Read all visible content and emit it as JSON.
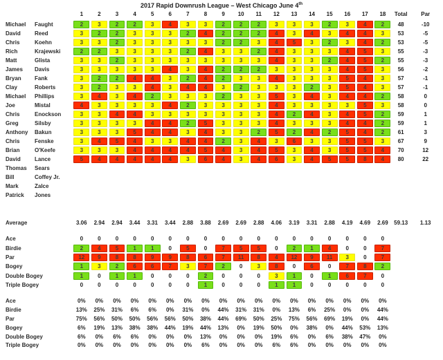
{
  "title": {
    "text": "2017 Rapid Downrush League – West Chicago June 4",
    "superscript": "th"
  },
  "columns": {
    "holes": [
      "1",
      "2",
      "3",
      "4",
      "5",
      "6",
      "7",
      "8",
      "9",
      "10",
      "11",
      "12",
      "13",
      "14",
      "15",
      "16",
      "17",
      "18"
    ],
    "total_label": "Total",
    "par_label": "Par"
  },
  "colors": {
    "birdie_green": "#79DF19",
    "par_yellow": "#FFFF00",
    "bogey_red": "#FF2E00"
  },
  "players": [
    {
      "first": "Michael",
      "last": "Faught",
      "scores": [
        2,
        3,
        2,
        2,
        3,
        4,
        3,
        3,
        2,
        2,
        2,
        3,
        3,
        3,
        2,
        3,
        4,
        2
      ],
      "total": "48",
      "par": "-10"
    },
    {
      "first": "David",
      "last": "Reed",
      "scores": [
        3,
        2,
        2,
        3,
        3,
        3,
        2,
        4,
        2,
        2,
        2,
        4,
        3,
        4,
        3,
        4,
        4,
        3
      ],
      "total": "53",
      "par": "-5"
    },
    {
      "first": "Chris",
      "last": "Koehn",
      "scores": [
        3,
        3,
        2,
        3,
        3,
        3,
        3,
        3,
        2,
        2,
        3,
        4,
        5,
        3,
        2,
        3,
        4,
        2
      ],
      "total": "53",
      "par": "-5"
    },
    {
      "first": "Rich",
      "last": "Krajewski",
      "scores": [
        2,
        2,
        3,
        3,
        3,
        3,
        2,
        4,
        3,
        3,
        2,
        4,
        3,
        3,
        3,
        4,
        5,
        3
      ],
      "total": "55",
      "par": "-3"
    },
    {
      "first": "Matt",
      "last": "Glista",
      "scores": [
        3,
        3,
        2,
        3,
        3,
        3,
        3,
        3,
        3,
        3,
        3,
        4,
        3,
        3,
        2,
        4,
        5,
        2
      ],
      "total": "55",
      "par": "-3"
    },
    {
      "first": "James",
      "last": "Davis",
      "scores": [
        3,
        3,
        3,
        3,
        3,
        4,
        3,
        4,
        2,
        2,
        2,
        3,
        3,
        3,
        3,
        4,
        5,
        3
      ],
      "total": "56",
      "par": "-2"
    },
    {
      "first": "Bryan",
      "last": "Fank",
      "scores": [
        3,
        2,
        2,
        4,
        4,
        3,
        2,
        4,
        2,
        3,
        3,
        4,
        3,
        3,
        3,
        5,
        4,
        3
      ],
      "total": "57",
      "par": "-1"
    },
    {
      "first": "Clay",
      "last": "Roberts",
      "scores": [
        3,
        2,
        3,
        3,
        4,
        3,
        4,
        4,
        3,
        2,
        3,
        3,
        3,
        2,
        3,
        5,
        4,
        3
      ],
      "total": "57",
      "par": "-1"
    },
    {
      "first": "Michael",
      "last": "Phillips",
      "scores": [
        3,
        4,
        3,
        4,
        2,
        3,
        3,
        3,
        2,
        3,
        3,
        5,
        3,
        4,
        3,
        4,
        4,
        2
      ],
      "total": "58",
      "par": "0"
    },
    {
      "first": "Joe",
      "last": "Mistal",
      "scores": [
        4,
        3,
        3,
        3,
        3,
        4,
        2,
        3,
        3,
        3,
        3,
        4,
        3,
        3,
        3,
        3,
        5,
        3
      ],
      "total": "58",
      "par": "0"
    },
    {
      "first": "Chris",
      "last": "Enockson",
      "scores": [
        3,
        3,
        4,
        4,
        3,
        3,
        3,
        3,
        3,
        3,
        3,
        4,
        2,
        4,
        3,
        4,
        5,
        2
      ],
      "total": "59",
      "par": "1"
    },
    {
      "first": "Greg",
      "last": "Silsby",
      "scores": [
        3,
        3,
        3,
        3,
        4,
        4,
        2,
        5,
        3,
        3,
        3,
        4,
        3,
        3,
        3,
        4,
        4,
        2
      ],
      "total": "59",
      "par": "1"
    },
    {
      "first": "Anthony",
      "last": "Bakun",
      "scores": [
        3,
        3,
        3,
        5,
        4,
        4,
        3,
        4,
        3,
        3,
        2,
        5,
        2,
        4,
        2,
        5,
        4,
        2
      ],
      "total": "61",
      "par": "3"
    },
    {
      "first": "Chris",
      "last": "Fenske",
      "scores": [
        3,
        4,
        5,
        4,
        3,
        3,
        4,
        4,
        2,
        3,
        4,
        3,
        6,
        3,
        3,
        5,
        5,
        3
      ],
      "total": "67",
      "par": "9"
    },
    {
      "first": "Brian",
      "last": "O'Keefe",
      "scores": [
        3,
        3,
        3,
        4,
        4,
        4,
        4,
        5,
        4,
        3,
        4,
        5,
        3,
        4,
        3,
        5,
        5,
        4
      ],
      "total": "70",
      "par": "12"
    },
    {
      "first": "David",
      "last": "Lance",
      "scores": [
        5,
        4,
        4,
        4,
        4,
        4,
        3,
        6,
        4,
        3,
        4,
        6,
        3,
        4,
        5,
        5,
        8,
        4
      ],
      "total": "80",
      "par": "22"
    },
    {
      "first": "Thomas",
      "last": "Sears",
      "scores": null,
      "total": "",
      "par": ""
    },
    {
      "first": "Bill",
      "last": "Coffey Jr.",
      "scores": null,
      "total": "",
      "par": ""
    },
    {
      "first": "Mark",
      "last": "Zalce",
      "scores": null,
      "total": "",
      "par": ""
    },
    {
      "first": "Patrick",
      "last": "Jones",
      "scores": null,
      "total": "",
      "par": ""
    }
  ],
  "average": {
    "label": "Average",
    "values": [
      "3.06",
      "2.94",
      "2.94",
      "3.44",
      "3.31",
      "3.44",
      "2.88",
      "3.88",
      "2.69",
      "2.69",
      "2.88",
      "4.06",
      "3.19",
      "3.31",
      "2.88",
      "4.19",
      "4.69",
      "2.69"
    ],
    "total": "59.13",
    "par": "1.13"
  },
  "counts": {
    "rows": [
      {
        "label": "Ace",
        "values": [
          0,
          0,
          0,
          0,
          0,
          0,
          0,
          0,
          0,
          0,
          0,
          0,
          0,
          0,
          0,
          0,
          0,
          0
        ]
      },
      {
        "label": "Birdie",
        "values": [
          2,
          4,
          5,
          1,
          1,
          0,
          5,
          0,
          7,
          5,
          5,
          0,
          2,
          1,
          4,
          0,
          0,
          7
        ]
      },
      {
        "label": "Par",
        "values": [
          12,
          9,
          8,
          8,
          9,
          9,
          8,
          6,
          7,
          11,
          8,
          4,
          12,
          9,
          11,
          3,
          0,
          7
        ]
      },
      {
        "label": "Bogey",
        "values": [
          1,
          3,
          2,
          6,
          6,
          7,
          3,
          7,
          2,
          0,
          3,
          8,
          0,
          6,
          0,
          7,
          8,
          2
        ]
      },
      {
        "label": "Double Bogey",
        "values": [
          1,
          0,
          1,
          1,
          0,
          0,
          0,
          2,
          0,
          0,
          0,
          3,
          1,
          0,
          1,
          6,
          7,
          0
        ]
      },
      {
        "label": "Triple Bogey",
        "values": [
          0,
          0,
          0,
          0,
          0,
          0,
          0,
          1,
          0,
          0,
          0,
          1,
          1,
          0,
          0,
          0,
          0,
          0
        ]
      }
    ]
  },
  "percentages": {
    "rows": [
      {
        "label": "Ace",
        "values": [
          "0%",
          "0%",
          "0%",
          "0%",
          "0%",
          "0%",
          "0%",
          "0%",
          "0%",
          "0%",
          "0%",
          "0%",
          "0%",
          "0%",
          "0%",
          "0%",
          "0%",
          "0%"
        ]
      },
      {
        "label": "Birdie",
        "values": [
          "13%",
          "25%",
          "31%",
          "6%",
          "6%",
          "0%",
          "31%",
          "0%",
          "44%",
          "31%",
          "31%",
          "0%",
          "13%",
          "6%",
          "25%",
          "0%",
          "0%",
          "44%"
        ]
      },
      {
        "label": "Par",
        "values": [
          "75%",
          "56%",
          "50%",
          "50%",
          "56%",
          "56%",
          "50%",
          "38%",
          "44%",
          "69%",
          "50%",
          "25%",
          "75%",
          "56%",
          "69%",
          "19%",
          "0%",
          "44%"
        ]
      },
      {
        "label": "Bogey",
        "values": [
          "6%",
          "19%",
          "13%",
          "38%",
          "38%",
          "44%",
          "19%",
          "44%",
          "13%",
          "0%",
          "19%",
          "50%",
          "0%",
          "38%",
          "0%",
          "44%",
          "53%",
          "13%"
        ]
      },
      {
        "label": "Double Bogey",
        "values": [
          "6%",
          "0%",
          "6%",
          "6%",
          "0%",
          "0%",
          "0%",
          "13%",
          "0%",
          "0%",
          "0%",
          "19%",
          "6%",
          "0%",
          "6%",
          "38%",
          "47%",
          "0%"
        ]
      },
      {
        "label": "Triple Bogey",
        "values": [
          "0%",
          "0%",
          "0%",
          "0%",
          "0%",
          "0%",
          "0%",
          "6%",
          "0%",
          "0%",
          "0%",
          "6%",
          "6%",
          "0%",
          "0%",
          "0%",
          "0%",
          "0%"
        ]
      }
    ]
  }
}
